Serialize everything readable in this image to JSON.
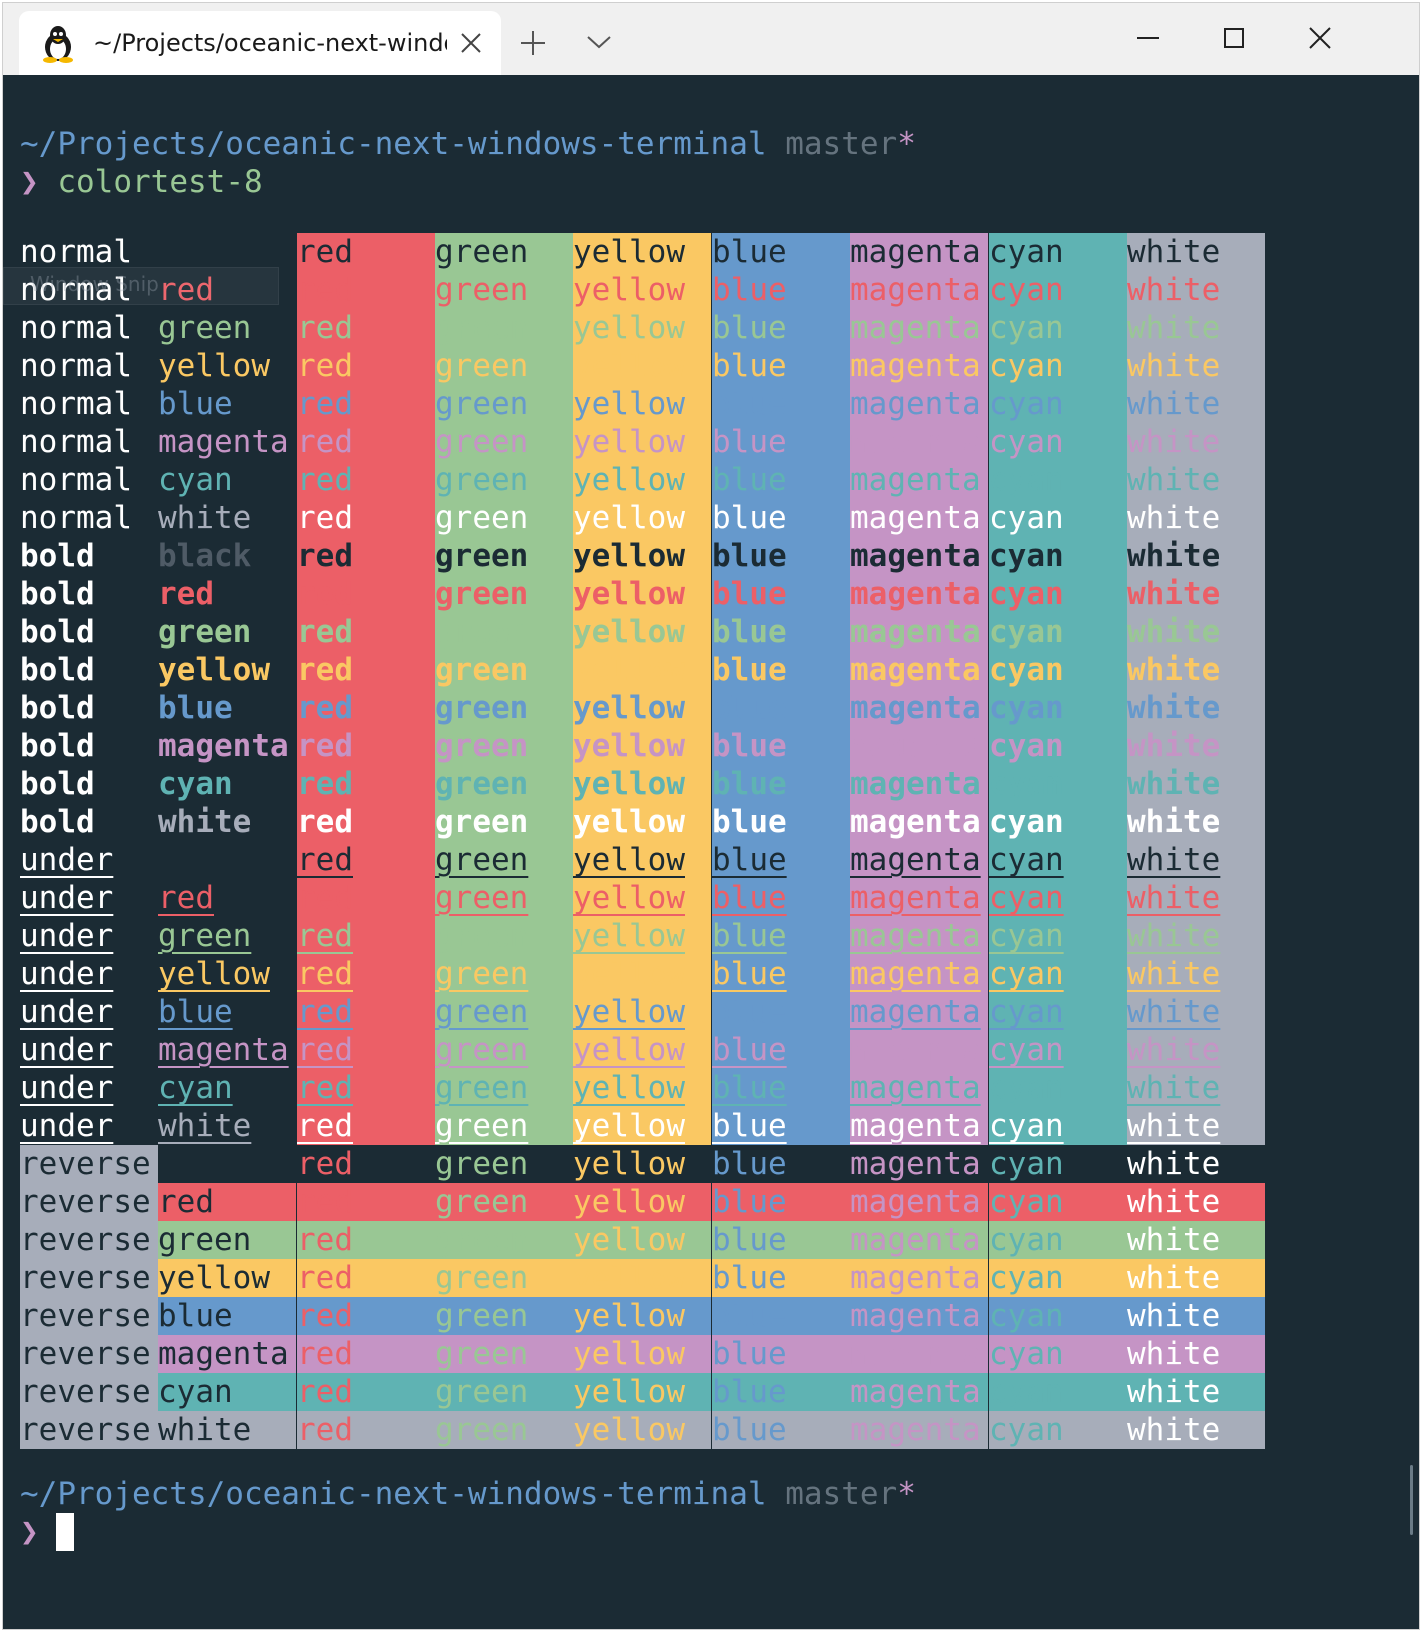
{
  "colors": {
    "bg": "#1b2b34",
    "red": "#ec5f67",
    "green": "#99c794",
    "yellow": "#fac863",
    "blue": "#6699cc",
    "magenta": "#c594c5",
    "cyan": "#5fb3b3",
    "white": "#a7adba",
    "black": "#1b2b34",
    "fg": "#ffffff",
    "brightblack": "#4f5b66",
    "pathblue": "#6699cc",
    "branchgray": "#65737e",
    "prompt": "#c594c5"
  },
  "tab": {
    "title": "~/Projects/oceanic-next-window",
    "icon": "linux-penguin-icon"
  },
  "terminal": {
    "path": "~/Projects/oceanic-next-windows-terminal",
    "branch": "master",
    "dirty": "*",
    "prompt_symbol": "❯",
    "command": "colortest-8"
  },
  "overlay_label": "Window Snip",
  "row_styles": [
    {
      "style": "normal",
      "fg": null,
      "label": ""
    },
    {
      "style": "normal",
      "fg": "red",
      "label": "red"
    },
    {
      "style": "normal",
      "fg": "green",
      "label": "green"
    },
    {
      "style": "normal",
      "fg": "yellow",
      "label": "yellow"
    },
    {
      "style": "normal",
      "fg": "blue",
      "label": "blue"
    },
    {
      "style": "normal",
      "fg": "magenta",
      "label": "magenta"
    },
    {
      "style": "normal",
      "fg": "cyan",
      "label": "cyan"
    },
    {
      "style": "normal",
      "fg": "white",
      "label": "white"
    },
    {
      "style": "bold",
      "fg": "black",
      "label": "black"
    },
    {
      "style": "bold",
      "fg": "red",
      "label": "red"
    },
    {
      "style": "bold",
      "fg": "green",
      "label": "green"
    },
    {
      "style": "bold",
      "fg": "yellow",
      "label": "yellow"
    },
    {
      "style": "bold",
      "fg": "blue",
      "label": "blue"
    },
    {
      "style": "bold",
      "fg": "magenta",
      "label": "magenta"
    },
    {
      "style": "bold",
      "fg": "cyan",
      "label": "cyan"
    },
    {
      "style": "bold",
      "fg": "white",
      "label": "white"
    },
    {
      "style": "under",
      "fg": null,
      "label": ""
    },
    {
      "style": "under",
      "fg": "red",
      "label": "red"
    },
    {
      "style": "under",
      "fg": "green",
      "label": "green"
    },
    {
      "style": "under",
      "fg": "yellow",
      "label": "yellow"
    },
    {
      "style": "under",
      "fg": "blue",
      "label": "blue"
    },
    {
      "style": "under",
      "fg": "magenta",
      "label": "magenta"
    },
    {
      "style": "under",
      "fg": "cyan",
      "label": "cyan"
    },
    {
      "style": "under",
      "fg": "white",
      "label": "white"
    },
    {
      "style": "reverse",
      "fg": null,
      "label": ""
    },
    {
      "style": "reverse",
      "fg": "red",
      "label": "red"
    },
    {
      "style": "reverse",
      "fg": "green",
      "label": "green"
    },
    {
      "style": "reverse",
      "fg": "yellow",
      "label": "yellow"
    },
    {
      "style": "reverse",
      "fg": "blue",
      "label": "blue"
    },
    {
      "style": "reverse",
      "fg": "magenta",
      "label": "magenta"
    },
    {
      "style": "reverse",
      "fg": "cyan",
      "label": "cyan"
    },
    {
      "style": "reverse",
      "fg": "white",
      "label": "white"
    }
  ],
  "columns": [
    "red",
    "green",
    "yellow",
    "blue",
    "magenta",
    "cyan",
    "white"
  ]
}
